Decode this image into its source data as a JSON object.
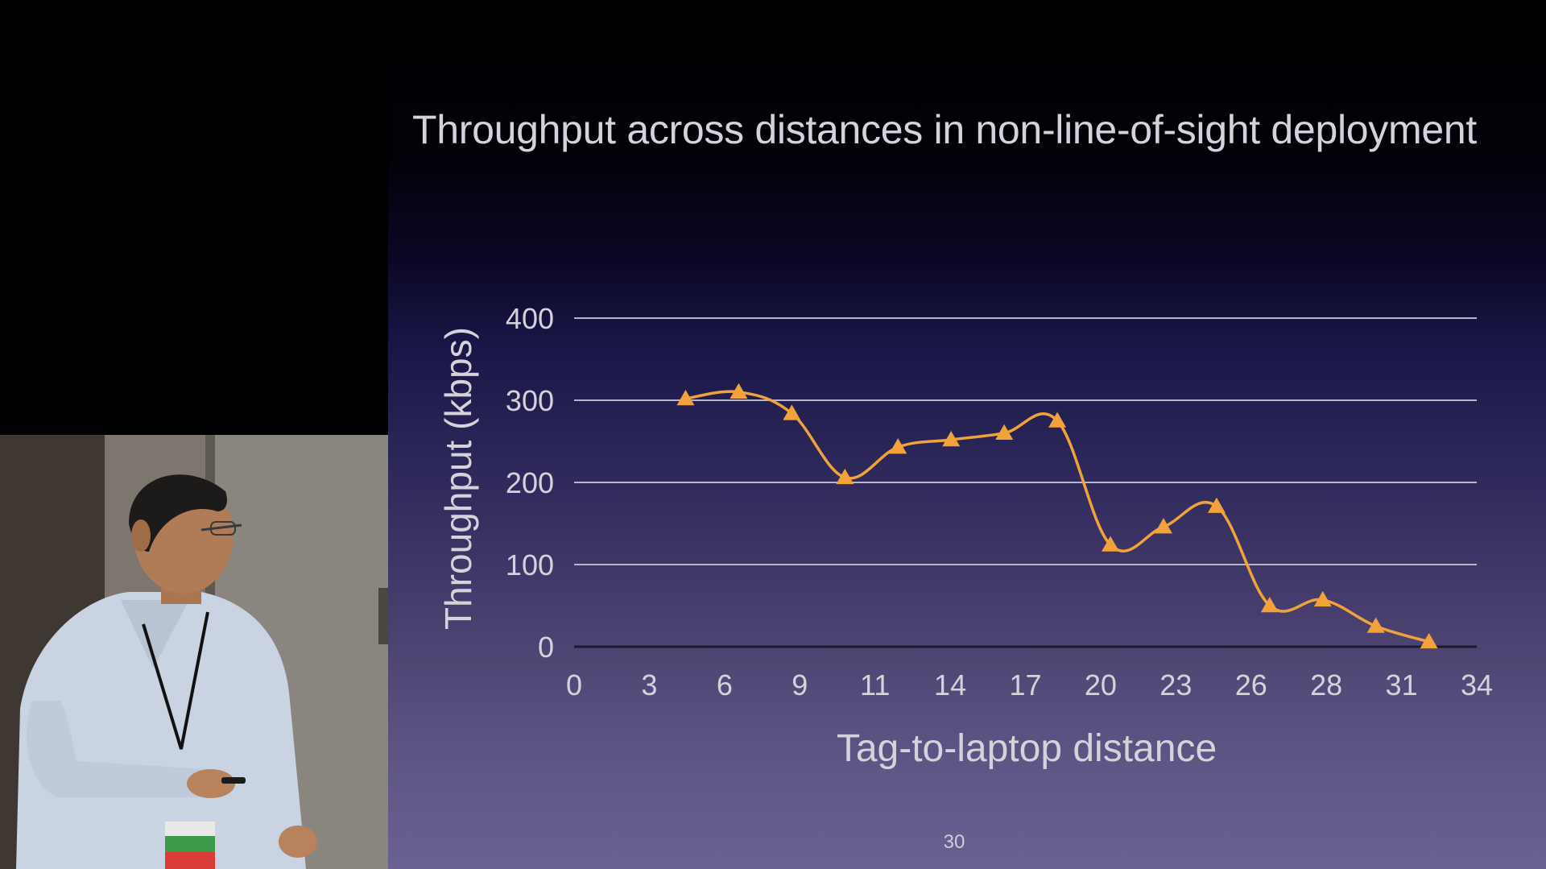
{
  "slide": {
    "number": "30"
  },
  "chart_data": {
    "type": "line",
    "title": "Throughput across distances in non-line-of-sight deployment",
    "xlabel": "Tag-to-laptop distance",
    "ylabel": "Throughput (kbps)",
    "xlim": [
      0,
      34
    ],
    "ylim": [
      0,
      400
    ],
    "x_ticks": [
      "0",
      "3",
      "6",
      "9",
      "11",
      "14",
      "17",
      "20",
      "23",
      "26",
      "28",
      "31",
      "34"
    ],
    "y_ticks": [
      "0",
      "100",
      "200",
      "300",
      "400"
    ],
    "grid": true,
    "marker": "triangle",
    "series_color": "#f2a23a",
    "gridline_color": "#b9b4c8",
    "smooth": true,
    "series": [
      {
        "x": [
          4.2,
          6.2,
          8.2,
          10.2,
          12.2,
          14.2,
          16.2,
          18.2,
          20.2,
          22.2,
          24.2,
          26.2,
          28.2,
          30.2,
          32.2
        ],
        "values": [
          302,
          310,
          284,
          206,
          243,
          252,
          260,
          275,
          124,
          146,
          171,
          50,
          57,
          25,
          6
        ]
      }
    ]
  }
}
